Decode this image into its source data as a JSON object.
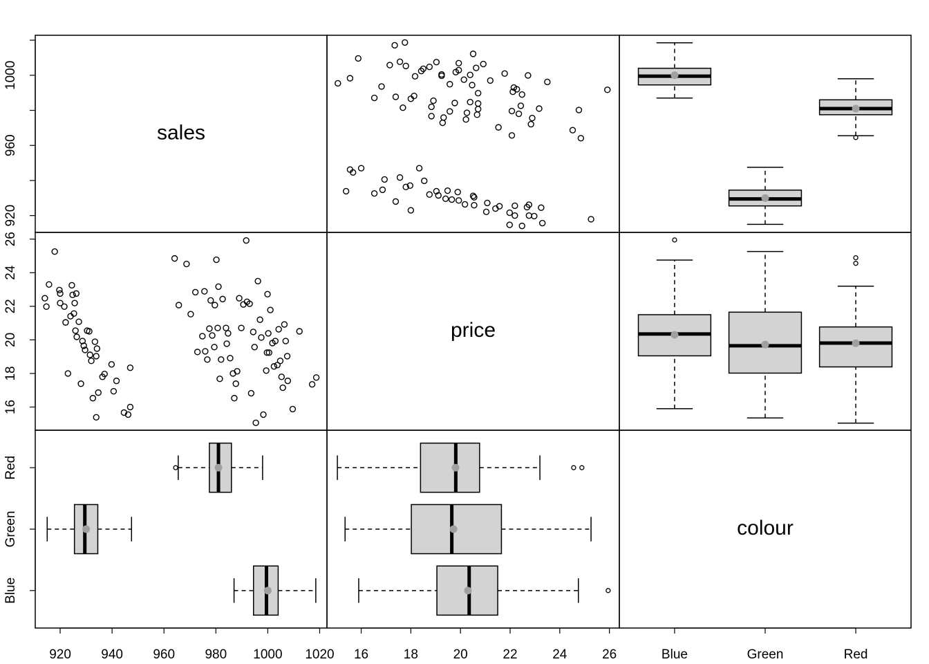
{
  "chart_data": {
    "type": "pairs",
    "labels": [
      "sales",
      "price",
      "colour"
    ],
    "sales": {
      "lim": [
        910.4,
        1022.8
      ],
      "ticks": [
        920,
        940,
        960,
        980,
        1000,
        1020
      ]
    },
    "price": {
      "lim": [
        14.62,
        26.4
      ],
      "ticks": [
        16,
        18,
        20,
        22,
        24,
        26
      ]
    },
    "colour": {
      "lim": [
        0.39,
        3.61
      ],
      "categories": [
        "Blue",
        "Green",
        "Red"
      ]
    },
    "scatter": {
      "x": [
        914.1,
        914.7,
        915.7,
        917.9,
        919.7,
        920,
        920,
        921.6,
        922.1,
        923,
        924,
        924.5,
        924.8,
        925.3,
        925.6,
        925.9,
        926.2,
        926.4,
        927.2,
        928,
        928.6,
        929.1,
        929.6,
        930.4,
        931.2,
        931.5,
        932,
        932.6,
        933.4,
        933.9,
        933.9,
        934.2,
        934.7,
        936.3,
        937.1,
        939.8,
        940.6,
        941.7,
        944.6,
        946.2,
        947,
        947,
        964.1,
        965.7,
        968.7,
        970.3,
        972.1,
        972.9,
        974.8,
        975.6,
        975.9,
        976.7,
        977.5,
        978,
        978.6,
        979.4,
        979.6,
        980.2,
        980.7,
        981,
        981.5,
        982,
        982.6,
        983.9,
        984.2,
        984.7,
        985.5,
        986.6,
        987.1,
        987.7,
        988.2,
        989,
        989.8,
        990.6,
        991.7,
        992,
        993,
        993.6,
        994.4,
        994.9,
        995.4,
        996.2,
        997,
        997.5,
        998.3,
        999.4,
        999.7,
        999.9,
        1000.2,
        1000.5,
        1001,
        1001.8,
        1002.4,
        1002.9,
        1003.7,
        1004.2,
        1004.8,
        1005.3,
        1005.8,
        1006.4,
        1006.9,
        1007.5,
        1007.7,
        1009.6,
        1012.2,
        1017.1,
        1018.7
      ],
      "y": [
        22.48,
        21.98,
        23.3,
        25.26,
        22.97,
        22.76,
        22.19,
        21.98,
        21.04,
        18.0,
        21.41,
        23.25,
        22.68,
        21.57,
        22.19,
        20.55,
        22.76,
        20.18,
        21.08,
        17.39,
        19.93,
        19.65,
        19.4,
        20.55,
        20.51,
        19.11,
        18.75,
        16.53,
        19.89,
        19.03,
        15.39,
        19.48,
        16.86,
        17.8,
        17.97,
        18.54,
        16.94,
        17.56,
        15.67,
        15.55,
        18.34,
        16.0,
        24.85,
        22.07,
        24.52,
        21.53,
        22.84,
        19.28,
        20.22,
        22.89,
        19.32,
        18.83,
        20.67,
        22.35,
        20.26,
        19.57,
        22.07,
        24.77,
        20.71,
        23.17,
        17.68,
        18.83,
        22.43,
        20.71,
        19.77,
        20.39,
        18.91,
        18.0,
        16.53,
        17.39,
        18.13,
        22.48,
        20.71,
        22.11,
        25.92,
        22.27,
        22.15,
        16.82,
        20.47,
        19.57,
        15.06,
        23.5,
        21.2,
        20.14,
        15.55,
        18.17,
        19.24,
        22.72,
        20.39,
        19.24,
        21.78,
        19.81,
        18.42,
        19.93,
        18.5,
        20.63,
        18.75,
        17.8,
        17.15,
        20.92,
        19.93,
        19.03,
        17.56,
        15.88,
        20.51,
        17.35,
        17.76
      ]
    },
    "sales_by_colour": [
      {
        "stats": [
          987,
          994.5,
          999.5,
          1004,
          1018.5
        ],
        "mean": 1000,
        "outliers": []
      },
      {
        "stats": [
          915,
          925.5,
          929.5,
          934.5,
          947.5
        ],
        "mean": 930,
        "outliers": []
      },
      {
        "stats": [
          965.5,
          977.5,
          981,
          986,
          998
        ],
        "mean": 981,
        "outliers": [
          964.5
        ]
      }
    ],
    "price_by_colour": [
      {
        "stats": [
          15.9,
          19.05,
          20.35,
          21.5,
          24.75
        ],
        "mean": 20.3,
        "outliers": [
          25.95
        ]
      },
      {
        "stats": [
          15.35,
          18.02,
          19.65,
          21.65,
          25.26
        ],
        "mean": 19.72,
        "outliers": []
      },
      {
        "stats": [
          15.04,
          18.39,
          19.81,
          20.77,
          23.2
        ],
        "mean": 19.8,
        "outliers": [
          24.56,
          24.89
        ]
      }
    ]
  }
}
